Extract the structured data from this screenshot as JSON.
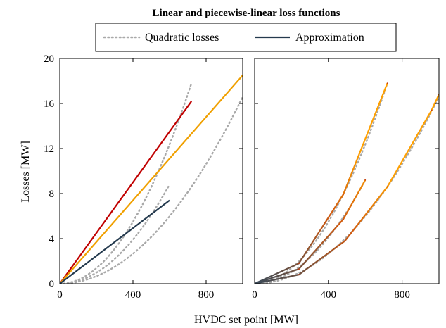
{
  "chart_data": [
    {
      "panel": "left",
      "type": "line",
      "title": "Linear and piecewise-linear loss functions",
      "xlabel": "HVDC set point [MW]",
      "ylabel": "Losses [MW]",
      "xlim": [
        0,
        1000
      ],
      "ylim": [
        0,
        20
      ],
      "xticks": [
        0,
        400,
        800
      ],
      "yticks": [
        0,
        4,
        8,
        12,
        16,
        20
      ],
      "grid": false,
      "legend": {
        "placement": "top-center",
        "entries": [
          {
            "label": "Quadratic losses",
            "style": "dotted",
            "color": "#a9a9a9"
          },
          {
            "label": "Approximation",
            "style": "solid",
            "color": "#243a4e"
          }
        ]
      },
      "quadratic": [
        {
          "max_x": 600,
          "max_y": 8.8
        },
        {
          "max_x": 720,
          "max_y": 17.8
        },
        {
          "max_x": 1000,
          "max_y": 16.6
        }
      ],
      "approximation": [
        {
          "color": "#c00000",
          "x": [
            0,
            720
          ],
          "y": [
            0,
            16.2
          ]
        },
        {
          "color": "#f0a000",
          "x": [
            0,
            1000
          ],
          "y": [
            0,
            18.5
          ]
        },
        {
          "color": "#243a4e",
          "x": [
            0,
            600
          ],
          "y": [
            0,
            7.4
          ]
        }
      ]
    },
    {
      "panel": "right",
      "type": "line",
      "xlim": [
        0,
        1000
      ],
      "ylim": [
        0,
        20
      ],
      "xticks": [
        0,
        400,
        800
      ],
      "grid": false,
      "quadratic": [
        {
          "max_x": 600,
          "max_y": 9.2
        },
        {
          "max_x": 720,
          "max_y": 17.8
        },
        {
          "max_x": 1000,
          "max_y": 16.6
        }
      ],
      "approximation": [
        {
          "x": [
            0,
            240,
            480,
            720
          ],
          "y": [
            0,
            1.8,
            7.9,
            17.8
          ]
        },
        {
          "x": [
            0,
            240,
            480,
            600
          ],
          "y": [
            0,
            1.3,
            5.7,
            9.2
          ]
        },
        {
          "x": [
            0,
            240,
            490,
            720,
            960,
            1000
          ],
          "y": [
            0,
            0.8,
            3.8,
            8.6,
            15.4,
            16.8
          ]
        }
      ],
      "gradient": {
        "start": "#384a5a",
        "end": "#ffa000",
        "mid": "#d05a10"
      }
    }
  ]
}
